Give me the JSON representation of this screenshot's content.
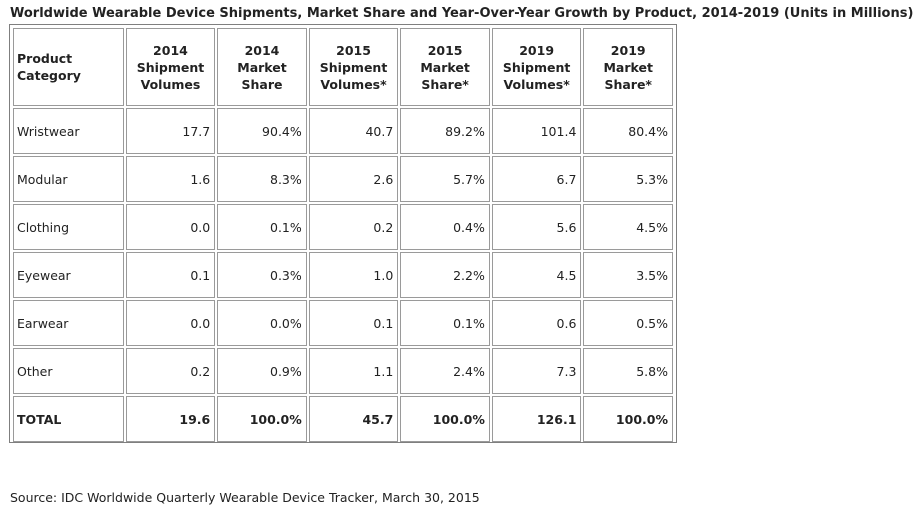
{
  "title": "Worldwide Wearable Device Shipments, Market Share and Year-Over-Year Growth by Product, 2014-2019 (Units in Millions)",
  "columns": [
    [
      "Product",
      "Category"
    ],
    [
      "2014",
      "Shipment",
      "Volumes"
    ],
    [
      "2014",
      "Market",
      "Share"
    ],
    [
      "2015",
      "Shipment",
      "Volumes*"
    ],
    [
      "2015",
      "Market",
      "Share*"
    ],
    [
      "2019",
      "Shipment",
      "Volumes*"
    ],
    [
      "2019",
      "Market",
      "Share*"
    ]
  ],
  "rows": [
    [
      "Wristwear",
      "17.7",
      "90.4%",
      "40.7",
      "89.2%",
      "101.4",
      "80.4%"
    ],
    [
      "Modular",
      "1.6",
      "8.3%",
      "2.6",
      "5.7%",
      "6.7",
      "5.3%"
    ],
    [
      "Clothing",
      "0.0",
      "0.1%",
      "0.2",
      "0.4%",
      "5.6",
      "4.5%"
    ],
    [
      "Eyewear",
      "0.1",
      "0.3%",
      "1.0",
      "2.2%",
      "4.5",
      "3.5%"
    ],
    [
      "Earwear",
      "0.0",
      "0.0%",
      "0.1",
      "0.1%",
      "0.6",
      "0.5%"
    ],
    [
      "Other",
      "0.2",
      "0.9%",
      "1.1",
      "2.4%",
      "7.3",
      "5.8%"
    ]
  ],
  "total": [
    "TOTAL",
    "19.6",
    "100.0%",
    "45.7",
    "100.0%",
    "126.1",
    "100.0%"
  ],
  "source": "Source: IDC Worldwide Quarterly Wearable Device Tracker, March 30, 2015",
  "chart_data": {
    "type": "table",
    "title": "Worldwide Wearable Device Shipments, Market Share and Year-Over-Year Growth by Product, 2014-2019 (Units in Millions)",
    "categories": [
      "Wristwear",
      "Modular",
      "Clothing",
      "Eyewear",
      "Earwear",
      "Other"
    ],
    "series": [
      {
        "name": "2014 Shipment Volumes",
        "values": [
          17.7,
          1.6,
          0.0,
          0.1,
          0.0,
          0.2
        ]
      },
      {
        "name": "2014 Market Share",
        "values": [
          90.4,
          8.3,
          0.1,
          0.3,
          0.0,
          0.9
        ]
      },
      {
        "name": "2015 Shipment Volumes*",
        "values": [
          40.7,
          2.6,
          0.2,
          1.0,
          0.1,
          1.1
        ]
      },
      {
        "name": "2015 Market Share*",
        "values": [
          89.2,
          5.7,
          0.4,
          2.2,
          0.1,
          2.4
        ]
      },
      {
        "name": "2019 Shipment Volumes*",
        "values": [
          101.4,
          6.7,
          5.6,
          4.5,
          0.6,
          7.3
        ]
      },
      {
        "name": "2019 Market Share*",
        "values": [
          80.4,
          5.3,
          4.5,
          3.5,
          0.5,
          5.8
        ]
      }
    ],
    "totals": [
      19.6,
      100.0,
      45.7,
      100.0,
      126.1,
      100.0
    ]
  }
}
